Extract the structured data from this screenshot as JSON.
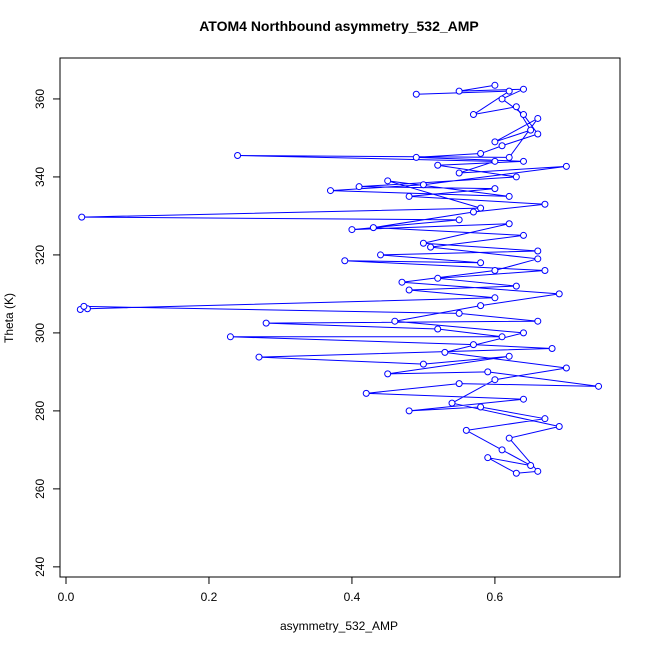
{
  "chart_data": {
    "type": "line",
    "markers": "circle",
    "title": "ATOM4 Northbound asymmetry_532_AMP",
    "x_label": "asymmetry_532_AMP",
    "y_label": "Theta (K)",
    "xlim": [
      -0.0084,
      0.775
    ],
    "ylim": [
      237.4,
      370.5
    ],
    "xticks": [
      {
        "value": 0,
        "label": "0.0"
      },
      0.2,
      0.4,
      0.6
    ],
    "yticks": [
      240,
      260,
      280,
      300,
      320,
      340,
      360
    ],
    "series": [
      {
        "color": "#0000ff",
        "x": [
          0.49,
          0.62,
          0.57,
          0.63,
          0.65,
          0.6,
          0.66,
          0.62,
          0.24,
          0.6,
          0.55,
          0.7,
          0.5,
          0.37,
          0.62,
          0.45,
          0.58,
          0.022,
          0.55,
          0.4,
          0.62,
          0.5,
          0.66,
          0.44,
          0.58,
          0.39,
          0.67,
          0.52,
          0.63,
          0.48,
          0.6,
          0.03,
          0.02,
          0.025,
          0.55,
          0.66,
          0.28,
          0.52,
          0.61,
          0.23,
          0.57,
          0.68,
          0.27,
          0.5,
          0.62,
          0.45,
          0.59,
          0.745,
          0.55,
          0.42,
          0.64,
          0.48,
          0.58,
          0.67,
          0.56,
          0.61,
          0.65,
          0.59,
          0.63,
          0.66,
          0.62,
          0.69,
          0.54,
          0.6,
          0.7,
          0.53,
          0.64,
          0.46,
          0.58,
          0.69,
          0.47,
          0.6,
          0.66,
          0.51,
          0.64,
          0.43,
          0.57,
          0.67,
          0.48,
          0.6,
          0.41,
          0.63,
          0.52,
          0.64,
          0.49,
          0.58,
          0.61,
          0.66,
          0.64,
          0.61,
          0.64,
          0.55,
          0.6
        ],
        "values": [
          361.2,
          362,
          356,
          358,
          352,
          349,
          355,
          345,
          345.5,
          344,
          341,
          342.7,
          338,
          336.5,
          335,
          339,
          332,
          329.7,
          329,
          326.5,
          328,
          323,
          321,
          320,
          318,
          318.5,
          316,
          314,
          312,
          311,
          309,
          306.2,
          306,
          306.8,
          305,
          303,
          302.5,
          301,
          299,
          299,
          297,
          296,
          293.8,
          292,
          294,
          289.5,
          290,
          286.3,
          287,
          284.5,
          283,
          280,
          281,
          278,
          275,
          270,
          266,
          268,
          264,
          264.5,
          273,
          276,
          282,
          288,
          291,
          295,
          300,
          303,
          307,
          310,
          313,
          316,
          319,
          322,
          325,
          327,
          331,
          333,
          335,
          337,
          337.5,
          340,
          343,
          344,
          345,
          346,
          348,
          351,
          356,
          360,
          362.5,
          362,
          363.5
        ]
      }
    ]
  }
}
